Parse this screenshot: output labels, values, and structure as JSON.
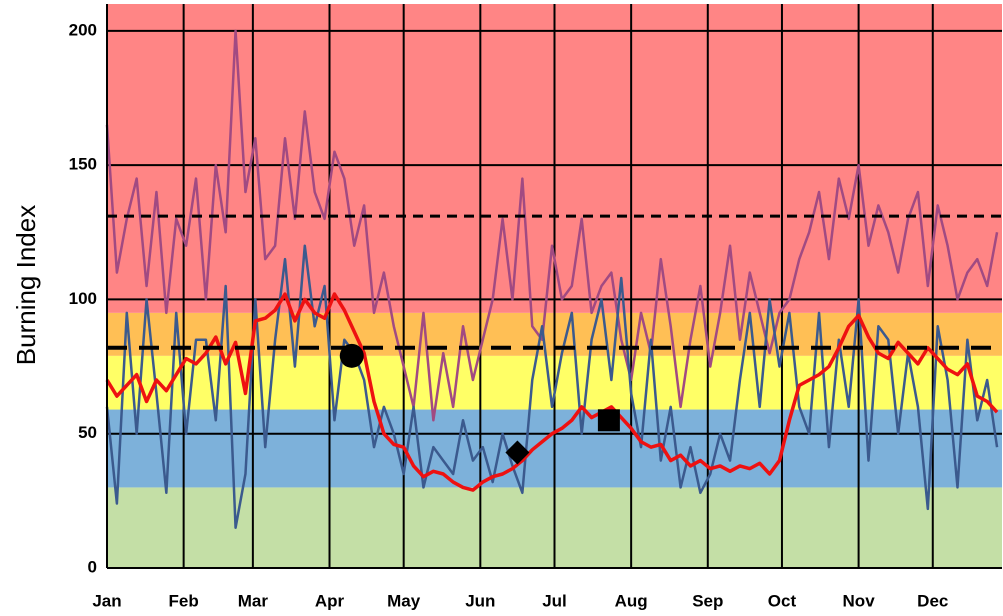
{
  "chart_data": {
    "type": "line",
    "y_label": "Burning Index",
    "x": [
      1,
      5,
      9,
      13,
      17,
      21,
      25,
      29,
      33,
      37,
      41,
      45,
      49,
      53,
      57,
      61,
      65,
      69,
      73,
      77,
      81,
      85,
      89,
      93,
      97,
      101,
      105,
      109,
      113,
      117,
      121,
      125,
      129,
      133,
      137,
      141,
      145,
      149,
      153,
      157,
      161,
      165,
      169,
      173,
      177,
      181,
      185,
      189,
      193,
      197,
      201,
      205,
      209,
      213,
      217,
      221,
      225,
      229,
      233,
      237,
      241,
      245,
      249,
      253,
      257,
      261,
      265,
      269,
      273,
      277,
      281,
      285,
      289,
      293,
      297,
      301,
      305,
      309,
      313,
      317,
      321,
      325,
      329,
      333,
      337,
      341,
      345,
      349,
      353,
      357,
      361
    ],
    "xlim": [
      1,
      363
    ],
    "xticks": [
      {
        "value": 1,
        "label": "Jan"
      },
      {
        "value": 32,
        "label": "Feb"
      },
      {
        "value": 60,
        "label": "Mar"
      },
      {
        "value": 91,
        "label": "Apr"
      },
      {
        "value": 121,
        "label": "May"
      },
      {
        "value": 152,
        "label": "Jun"
      },
      {
        "value": 182,
        "label": "Jul"
      },
      {
        "value": 213,
        "label": "Aug"
      },
      {
        "value": 244,
        "label": "Sep"
      },
      {
        "value": 274,
        "label": "Oct"
      },
      {
        "value": 305,
        "label": "Nov"
      },
      {
        "value": 335,
        "label": "Dec"
      }
    ],
    "ylim": [
      0,
      210
    ],
    "yticks": [
      0,
      50,
      100,
      150,
      200
    ],
    "grid": true,
    "bands": [
      {
        "from": 0,
        "to": 30,
        "color": "#c4dfa6"
      },
      {
        "from": 30,
        "to": 59,
        "color": "#7db1da"
      },
      {
        "from": 59,
        "to": 79,
        "color": "#ffff66"
      },
      {
        "from": 79,
        "to": 95,
        "color": "#ffbf55"
      },
      {
        "from": 95,
        "to": 210,
        "color": "#ff8585"
      }
    ],
    "reference_lines": [
      82,
      131
    ],
    "series": [
      {
        "color": "#a14a82",
        "values": [
          165,
          110,
          130,
          145,
          105,
          140,
          95,
          130,
          120,
          145,
          100,
          150,
          125,
          200,
          140,
          160,
          115,
          120,
          160,
          130,
          170,
          140,
          130,
          155,
          145,
          120,
          135,
          95,
          110,
          90,
          75,
          60,
          95,
          55,
          80,
          60,
          90,
          70,
          85,
          100,
          130,
          100,
          145,
          90,
          85,
          120,
          100,
          105,
          130,
          95,
          105,
          110,
          85,
          70,
          95,
          80,
          115,
          90,
          60,
          85,
          105,
          75,
          95,
          120,
          85,
          110,
          95,
          80,
          95,
          100,
          115,
          125,
          140,
          115,
          145,
          130,
          150,
          120,
          135,
          125,
          110,
          130,
          140,
          105,
          135,
          120,
          100,
          110,
          115,
          105,
          125
        ]
      },
      {
        "color": "#3b5a8e",
        "values": [
          60,
          24,
          95,
          50,
          100,
          65,
          28,
          95,
          50,
          85,
          85,
          55,
          105,
          15,
          35,
          100,
          45,
          85,
          115,
          75,
          120,
          90,
          105,
          55,
          85,
          80,
          70,
          45,
          60,
          50,
          35,
          60,
          30,
          45,
          40,
          35,
          55,
          40,
          45,
          32,
          50,
          38,
          28,
          70,
          90,
          60,
          80,
          95,
          50,
          85,
          100,
          70,
          108,
          65,
          45,
          85,
          40,
          60,
          30,
          45,
          28,
          35,
          50,
          40,
          70,
          95,
          60,
          100,
          75,
          95,
          60,
          50,
          95,
          45,
          85,
          60,
          100,
          40,
          90,
          85,
          50,
          80,
          60,
          22,
          90,
          70,
          30,
          85,
          55,
          70,
          45
        ]
      },
      {
        "color": "#ee1111",
        "values": [
          70,
          64,
          68,
          72,
          62,
          70,
          66,
          72,
          78,
          76,
          80,
          86,
          76,
          84,
          65,
          92,
          93,
          96,
          102,
          92,
          100,
          95,
          93,
          102,
          96,
          88,
          80,
          62,
          50,
          46,
          45,
          38,
          34,
          36,
          35,
          32,
          30,
          29,
          32,
          34,
          35,
          37,
          40,
          44,
          47,
          50,
          52,
          55,
          60,
          56,
          58,
          60,
          56,
          52,
          47,
          45,
          46,
          40,
          42,
          38,
          40,
          37,
          38,
          36,
          38,
          37,
          39,
          35,
          40,
          55,
          68,
          70,
          72,
          75,
          82,
          90,
          94,
          86,
          80,
          78,
          84,
          80,
          76,
          82,
          78,
          74,
          72,
          76,
          64,
          62,
          58
        ]
      }
    ],
    "markers": [
      {
        "x": 100,
        "y": 79,
        "shape": "circle"
      },
      {
        "x": 167,
        "y": 43,
        "shape": "diamond"
      },
      {
        "x": 204,
        "y": 55,
        "shape": "square"
      }
    ]
  }
}
